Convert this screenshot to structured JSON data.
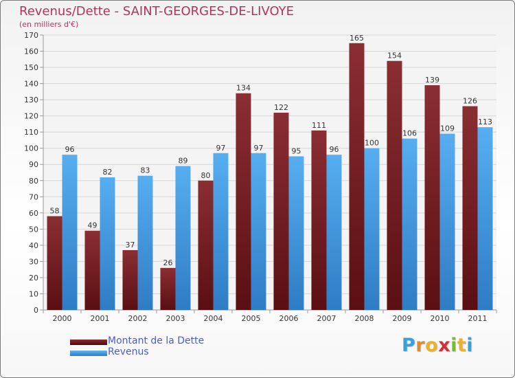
{
  "chart_data": {
    "type": "bar",
    "title": "Revenus/Dette - SAINT-GEORGES-DE-LIVOYE",
    "subtitle": "(en milliers d'€)",
    "categories": [
      "2000",
      "2001",
      "2002",
      "2003",
      "2004",
      "2005",
      "2006",
      "2007",
      "2008",
      "2009",
      "2010",
      "2011"
    ],
    "series": [
      {
        "name": "Montant de la Dette",
        "color": "#7a1f24",
        "values": [
          58,
          49,
          37,
          26,
          80,
          134,
          122,
          111,
          165,
          154,
          139,
          126
        ]
      },
      {
        "name": "Revenus",
        "color": "#4aa3e8",
        "values": [
          96,
          82,
          83,
          89,
          97,
          97,
          95,
          96,
          100,
          106,
          109,
          113
        ]
      }
    ],
    "ylim": [
      0,
      170
    ],
    "yticks": [
      0,
      10,
      20,
      30,
      40,
      50,
      60,
      70,
      80,
      90,
      100,
      110,
      120,
      130,
      140,
      150,
      160,
      170
    ],
    "grid": true,
    "legend_position": "bottom-left"
  },
  "brand": {
    "letters": [
      "P",
      "r",
      "o",
      "x",
      "i",
      "t",
      "i"
    ],
    "colors": [
      "#3aa0d8",
      "#e08a2c",
      "#e8b22c",
      "#d0313d",
      "#7ab83a",
      "#e8b22c",
      "#3aa0d8"
    ]
  }
}
